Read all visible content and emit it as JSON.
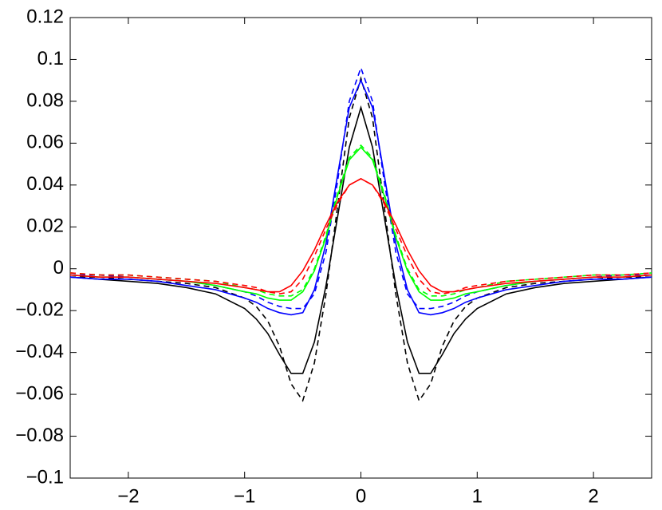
{
  "chart_data": {
    "type": "line",
    "x": [
      -2.5,
      -2.25,
      -2,
      -1.75,
      -1.5,
      -1.25,
      -1,
      -0.9,
      -0.8,
      -0.7,
      -0.6,
      -0.5,
      -0.4,
      -0.3,
      -0.2,
      -0.1,
      0,
      0.1,
      0.2,
      0.3,
      0.4,
      0.5,
      0.6,
      0.7,
      0.8,
      0.9,
      1,
      1.25,
      1.5,
      1.75,
      2,
      2.25,
      2.5
    ],
    "series": [
      {
        "color": "#000000",
        "dash": false,
        "values": [
          -0.004,
          -0.005,
          -0.006,
          -0.007,
          -0.009,
          -0.012,
          -0.019,
          -0.024,
          -0.031,
          -0.041,
          -0.05,
          -0.05,
          -0.035,
          -0.008,
          0.025,
          0.058,
          0.077,
          0.058,
          0.025,
          -0.008,
          -0.035,
          -0.05,
          -0.05,
          -0.041,
          -0.031,
          -0.024,
          -0.019,
          -0.012,
          -0.009,
          -0.007,
          -0.006,
          -0.005,
          -0.004
        ]
      },
      {
        "color": "#000000",
        "dash": true,
        "values": [
          -0.004,
          -0.004,
          -0.005,
          -0.006,
          -0.007,
          -0.009,
          -0.014,
          -0.018,
          -0.025,
          -0.037,
          -0.055,
          -0.063,
          -0.045,
          -0.012,
          0.03,
          0.072,
          0.091,
          0.072,
          0.03,
          -0.012,
          -0.045,
          -0.063,
          -0.055,
          -0.037,
          -0.025,
          -0.018,
          -0.014,
          -0.009,
          -0.007,
          -0.006,
          -0.005,
          -0.004,
          -0.004
        ]
      },
      {
        "color": "#0000ff",
        "dash": false,
        "values": [
          -0.004,
          -0.005,
          -0.005,
          -0.006,
          -0.008,
          -0.01,
          -0.014,
          -0.016,
          -0.019,
          -0.021,
          -0.022,
          -0.021,
          -0.01,
          0.012,
          0.045,
          0.077,
          0.09,
          0.077,
          0.045,
          0.012,
          -0.01,
          -0.021,
          -0.022,
          -0.021,
          -0.019,
          -0.016,
          -0.014,
          -0.01,
          -0.008,
          -0.006,
          -0.005,
          -0.005,
          -0.004
        ]
      },
      {
        "color": "#0000ff",
        "dash": true,
        "values": [
          -0.003,
          -0.003,
          -0.004,
          -0.005,
          -0.006,
          -0.008,
          -0.011,
          -0.013,
          -0.016,
          -0.018,
          -0.019,
          -0.019,
          -0.012,
          0.008,
          0.042,
          0.08,
          0.096,
          0.08,
          0.042,
          0.008,
          -0.012,
          -0.019,
          -0.019,
          -0.018,
          -0.016,
          -0.013,
          -0.011,
          -0.008,
          -0.006,
          -0.005,
          -0.004,
          -0.003,
          -0.003
        ]
      },
      {
        "color": "#00ff00",
        "dash": false,
        "values": [
          -0.003,
          -0.004,
          -0.004,
          -0.005,
          -0.006,
          -0.008,
          -0.011,
          -0.012,
          -0.014,
          -0.015,
          -0.015,
          -0.011,
          -0.001,
          0.015,
          0.035,
          0.052,
          0.058,
          0.052,
          0.035,
          0.015,
          -0.001,
          -0.011,
          -0.015,
          -0.015,
          -0.014,
          -0.012,
          -0.011,
          -0.008,
          -0.006,
          -0.005,
          -0.004,
          -0.004,
          -0.003
        ]
      },
      {
        "color": "#00ff00",
        "dash": true,
        "values": [
          -0.002,
          -0.003,
          -0.003,
          -0.004,
          -0.005,
          -0.006,
          -0.009,
          -0.01,
          -0.012,
          -0.013,
          -0.013,
          -0.01,
          0.0,
          0.016,
          0.036,
          0.053,
          0.059,
          0.053,
          0.036,
          0.016,
          0.0,
          -0.01,
          -0.013,
          -0.013,
          -0.012,
          -0.01,
          -0.009,
          -0.006,
          -0.005,
          -0.004,
          -0.003,
          -0.003,
          -0.002
        ]
      },
      {
        "color": "#ff0000",
        "dash": false,
        "values": [
          -0.003,
          -0.004,
          -0.004,
          -0.005,
          -0.006,
          -0.007,
          -0.009,
          -0.01,
          -0.011,
          -0.011,
          -0.008,
          -0.001,
          0.009,
          0.021,
          0.032,
          0.04,
          0.043,
          0.04,
          0.032,
          0.021,
          0.009,
          -0.001,
          -0.008,
          -0.011,
          -0.011,
          -0.01,
          -0.009,
          -0.007,
          -0.006,
          -0.005,
          -0.004,
          -0.004,
          -0.003
        ]
      },
      {
        "color": "#ff0000",
        "dash": true,
        "values": [
          -0.002,
          -0.003,
          -0.003,
          -0.004,
          -0.005,
          -0.006,
          -0.008,
          -0.009,
          -0.011,
          -0.012,
          -0.011,
          -0.005,
          0.006,
          0.019,
          0.031,
          0.04,
          0.043,
          0.04,
          0.031,
          0.019,
          0.006,
          -0.005,
          -0.011,
          -0.012,
          -0.011,
          -0.009,
          -0.008,
          -0.006,
          -0.005,
          -0.004,
          -0.003,
          -0.003,
          -0.002
        ]
      }
    ],
    "xlim": [
      -2.5,
      2.5
    ],
    "xticks": [
      {
        "value": -2,
        "label": "−2"
      },
      {
        "value": -1,
        "label": "−1"
      },
      0,
      1,
      2
    ],
    "ylim": [
      -0.1,
      0.12
    ],
    "yticks": [
      {
        "value": -0.1,
        "label": "−0.1"
      },
      {
        "value": -0.08,
        "label": "−0.08"
      },
      {
        "value": -0.06,
        "label": "−0.06"
      },
      {
        "value": -0.04,
        "label": "−0.04"
      },
      {
        "value": -0.02,
        "label": "−0.02"
      },
      0,
      0.02,
      0.04,
      0.06,
      0.08,
      0.1,
      0.12
    ],
    "grid": false
  }
}
